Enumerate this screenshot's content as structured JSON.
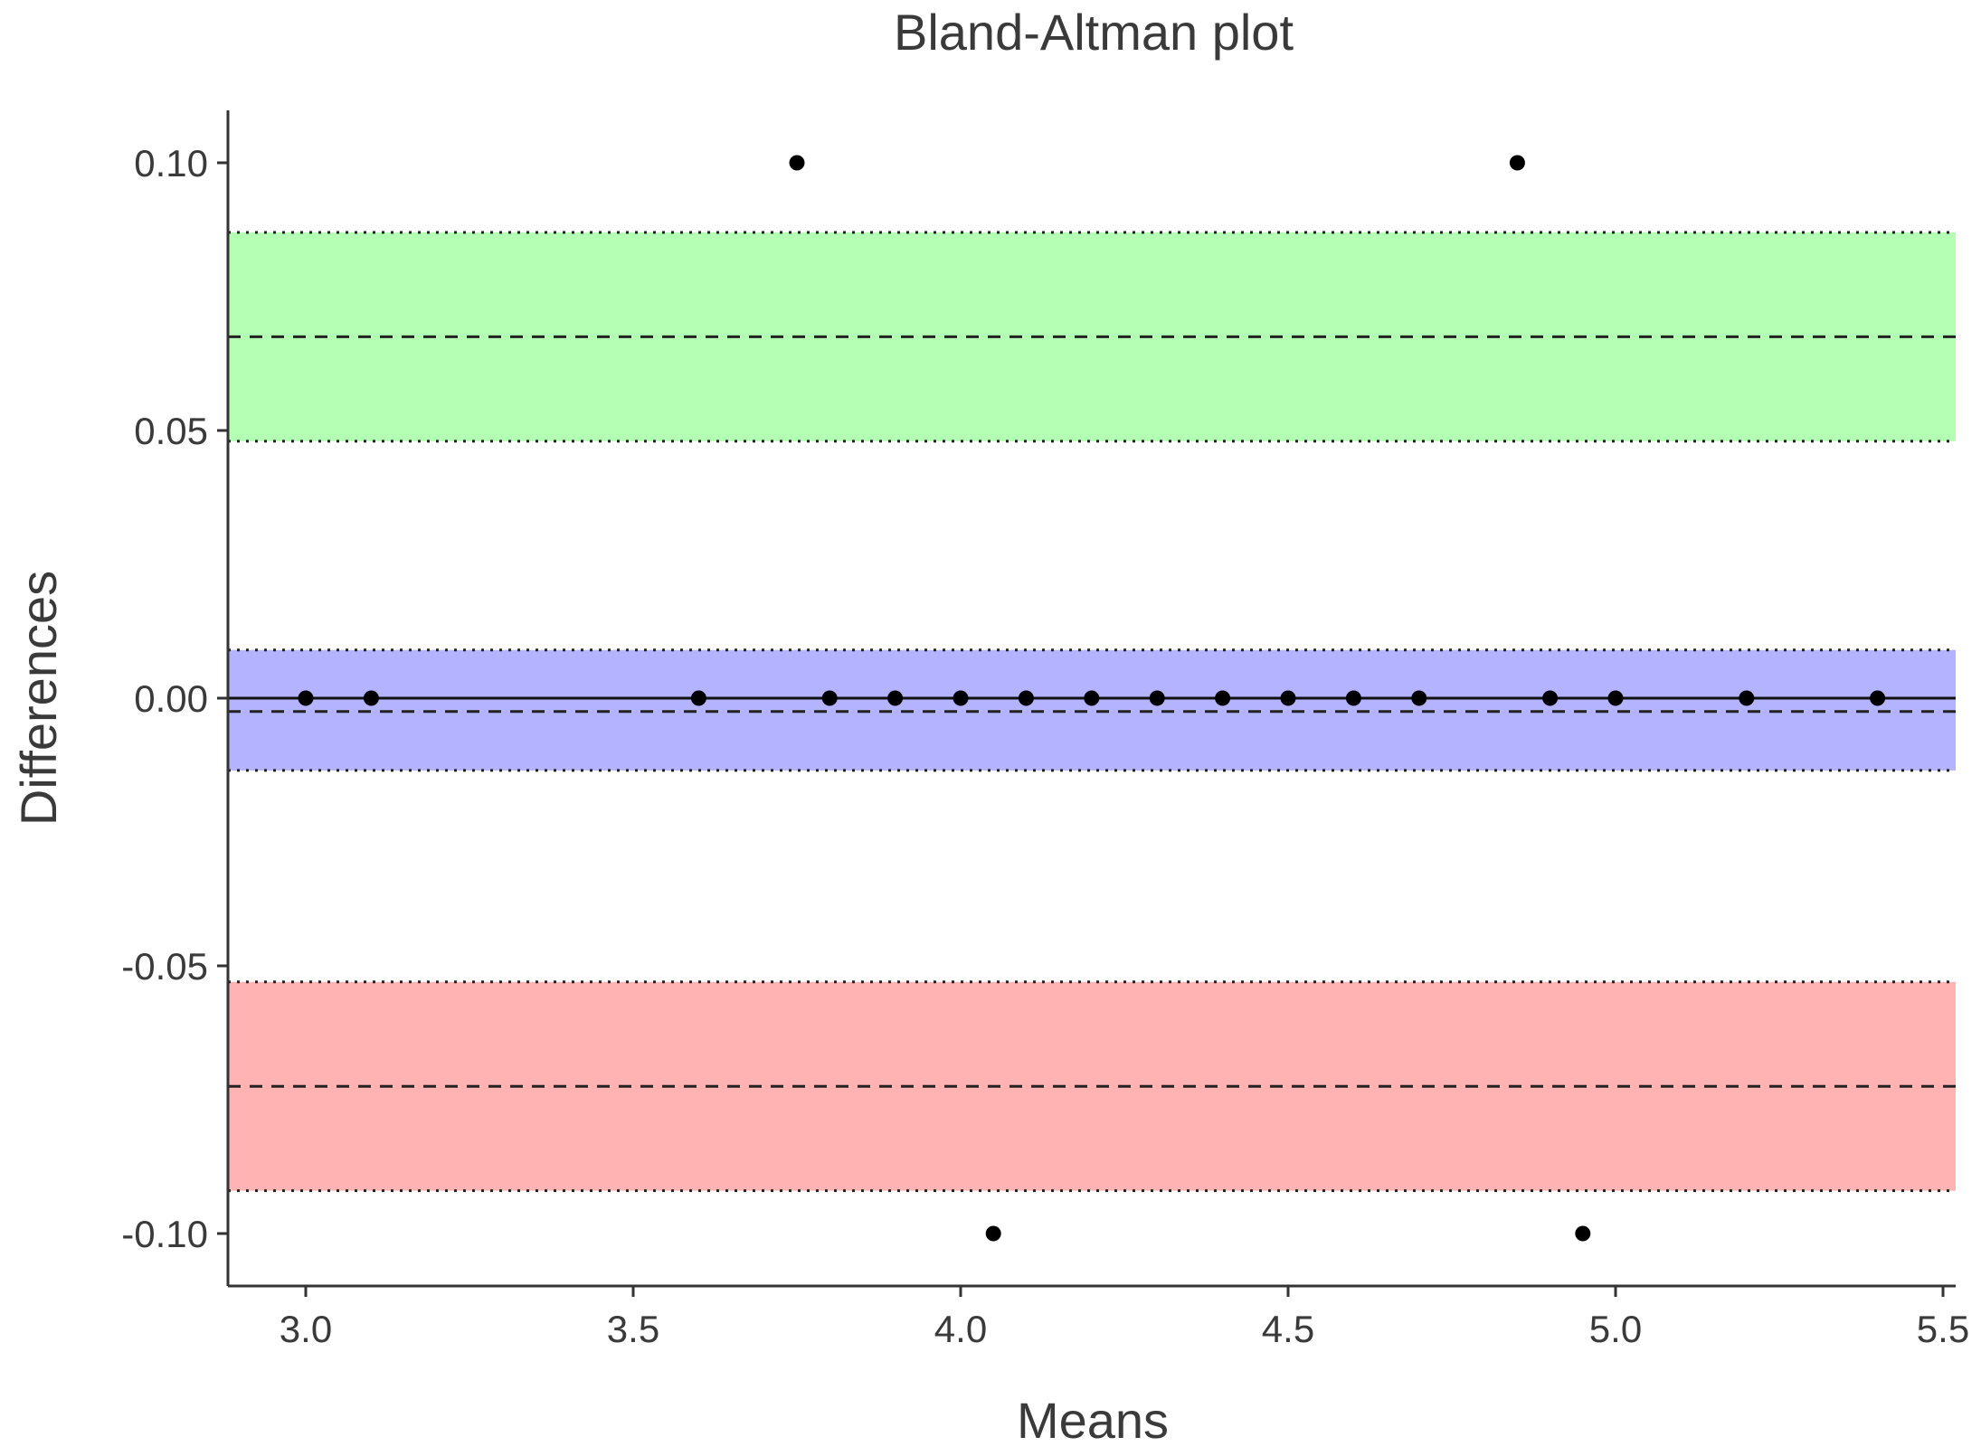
{
  "chart_data": {
    "type": "scatter",
    "title": "Bland-Altman plot",
    "xlabel": "Means",
    "ylabel": "Differences",
    "xlim": [
      2.88,
      5.52
    ],
    "ylim": [
      -0.11,
      0.11
    ],
    "x_ticks": [
      3.0,
      3.5,
      4.0,
      4.5,
      5.0,
      5.5
    ],
    "x_tick_labels": [
      "3.0",
      "3.5",
      "4.0",
      "4.5",
      "5.0",
      "5.5"
    ],
    "y_ticks": [
      0.1,
      0.05,
      0.0,
      -0.05,
      -0.1
    ],
    "y_tick_labels": [
      "0.10",
      "0.05",
      "0.00",
      "-0.05",
      "-0.10"
    ],
    "grid": false,
    "zero_line": 0.0,
    "bands": [
      {
        "name": "upper limit of agreement CI",
        "color": "#b3ffb3",
        "lower": 0.048,
        "upper": 0.087,
        "line": 0.0675
      },
      {
        "name": "mean difference CI",
        "color": "#b3b3ff",
        "lower": -0.0135,
        "upper": 0.009,
        "line": -0.0025
      },
      {
        "name": "lower limit of agreement CI",
        "color": "#ffb3b3",
        "lower": -0.092,
        "upper": -0.053,
        "line": -0.0725
      }
    ],
    "points": [
      {
        "x": 3.0,
        "y": 0.0
      },
      {
        "x": 3.1,
        "y": 0.0
      },
      {
        "x": 3.6,
        "y": 0.0
      },
      {
        "x": 3.75,
        "y": 0.1
      },
      {
        "x": 3.8,
        "y": 0.0
      },
      {
        "x": 3.9,
        "y": 0.0
      },
      {
        "x": 4.0,
        "y": 0.0
      },
      {
        "x": 4.05,
        "y": -0.1
      },
      {
        "x": 4.1,
        "y": 0.0
      },
      {
        "x": 4.2,
        "y": 0.0
      },
      {
        "x": 4.3,
        "y": 0.0
      },
      {
        "x": 4.4,
        "y": 0.0
      },
      {
        "x": 4.5,
        "y": 0.0
      },
      {
        "x": 4.6,
        "y": 0.0
      },
      {
        "x": 4.7,
        "y": 0.0
      },
      {
        "x": 4.85,
        "y": 0.1
      },
      {
        "x": 4.9,
        "y": 0.0
      },
      {
        "x": 4.95,
        "y": -0.1
      },
      {
        "x": 5.0,
        "y": 0.0
      },
      {
        "x": 5.2,
        "y": 0.0
      },
      {
        "x": 5.4,
        "y": 0.0
      }
    ]
  }
}
